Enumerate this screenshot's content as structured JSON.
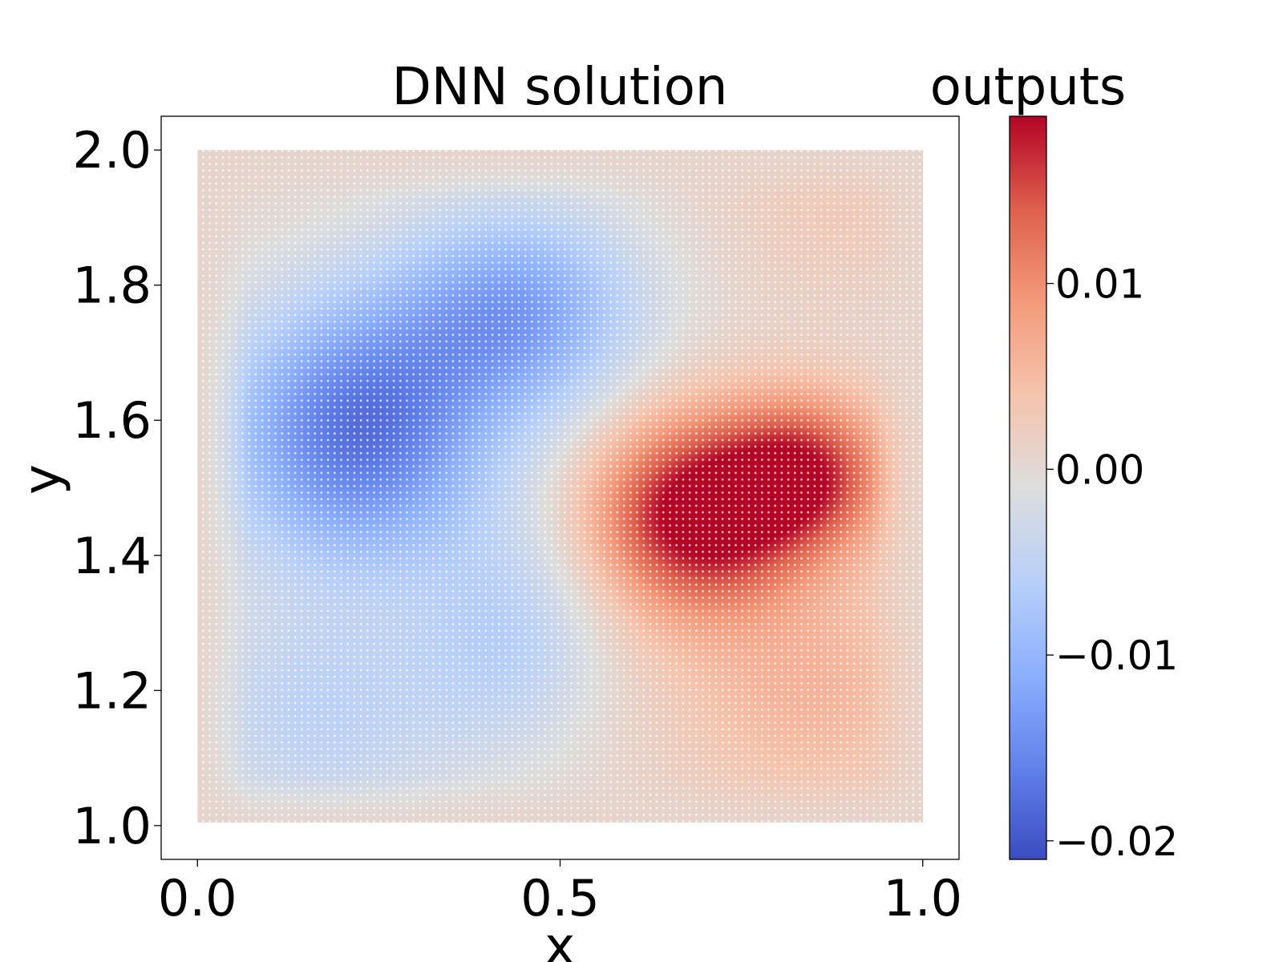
{
  "chart_data": {
    "type": "heatmap",
    "title": "DNN solution",
    "xlabel": "x",
    "ylabel": "y",
    "xlim": [
      -0.05,
      1.05
    ],
    "ylim": [
      0.95,
      2.05
    ],
    "x_ticks": [
      {
        "value": 0.0,
        "label": "0.0"
      },
      {
        "value": 0.5,
        "label": "0.5"
      },
      {
        "value": 1.0,
        "label": "1.0"
      }
    ],
    "y_ticks": [
      {
        "value": 1.0,
        "label": "1.0"
      },
      {
        "value": 1.2,
        "label": "1.2"
      },
      {
        "value": 1.4,
        "label": "1.4"
      },
      {
        "value": 1.6,
        "label": "1.6"
      },
      {
        "value": 1.8,
        "label": "1.8"
      },
      {
        "value": 2.0,
        "label": "2.0"
      }
    ],
    "grid": false,
    "colorbar": {
      "label": "outputs",
      "colormap": "coolwarm",
      "vmin": -0.021,
      "vmax": 0.019,
      "ticks": [
        {
          "value": -0.02,
          "label": "−0.02"
        },
        {
          "value": -0.01,
          "label": "−0.01"
        },
        {
          "value": 0.0,
          "label": "0.00"
        },
        {
          "value": 0.01,
          "label": "0.01"
        }
      ]
    },
    "domain": {
      "x": [
        0.0,
        1.0
      ],
      "y": [
        1.0,
        2.0
      ]
    },
    "field_components": [
      {
        "cx": 0.22,
        "cy": 1.58,
        "sx": 0.13,
        "sy": 0.14,
        "amp": -0.018
      },
      {
        "cx": 0.44,
        "cy": 1.76,
        "sx": 0.12,
        "sy": 0.11,
        "amp": -0.013
      },
      {
        "cx": 0.17,
        "cy": 1.16,
        "sx": 0.14,
        "sy": 0.12,
        "amp": -0.006
      },
      {
        "cx": 0.43,
        "cy": 1.28,
        "sx": 0.09,
        "sy": 0.12,
        "amp": -0.006
      },
      {
        "cx": 0.69,
        "cy": 1.46,
        "sx": 0.1,
        "sy": 0.1,
        "amp": 0.02
      },
      {
        "cx": 0.84,
        "cy": 1.52,
        "sx": 0.08,
        "sy": 0.08,
        "amp": 0.015
      },
      {
        "cx": 0.84,
        "cy": 1.2,
        "sx": 0.13,
        "sy": 0.12,
        "amp": 0.005
      },
      {
        "cx": 0.88,
        "cy": 1.9,
        "sx": 0.1,
        "sy": 0.08,
        "amp": 0.002
      }
    ],
    "boundary_value": 0.0008
  }
}
